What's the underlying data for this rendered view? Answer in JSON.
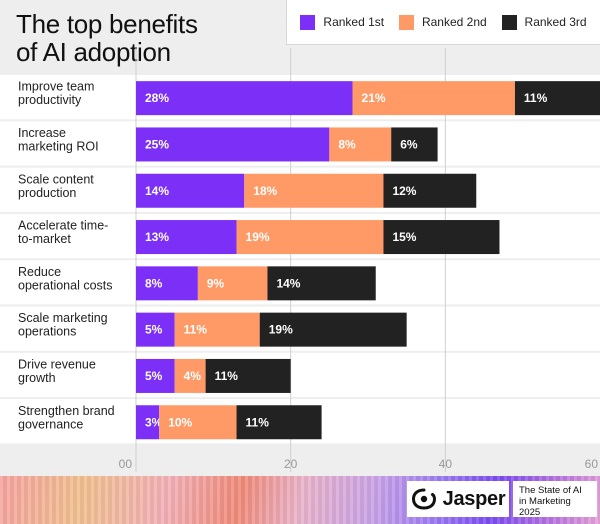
{
  "title_lines": [
    "The top benefits",
    "of AI adoption"
  ],
  "colors": {
    "ranked_1st": "#7b2ff7",
    "ranked_2nd": "#ff9a66",
    "ranked_3rd": "#222222",
    "row_band": "#ffffff",
    "gridline": "#cfcfcf"
  },
  "legend": [
    {
      "label": "Ranked 1st"
    },
    {
      "label": "Ranked 2nd"
    },
    {
      "label": "Ranked 3rd"
    }
  ],
  "footer": {
    "logo_name": "Jasper",
    "logo_icon": "jasper-logo-icon",
    "report_title": "The State of AI in Marketing 2025"
  },
  "chart_data": {
    "type": "bar",
    "orientation": "horizontal",
    "stacked": true,
    "title": "The top benefits of AI adoption",
    "categories": [
      "Improve team productivity",
      "Increase marketing ROI",
      "Scale content production",
      "Accelerate time-to-market",
      "Reduce operational costs",
      "Scale marketing operations",
      "Drive revenue growth",
      "Strengthen brand governance"
    ],
    "category_lines": [
      [
        "Improve team",
        "productivity"
      ],
      [
        "Increase",
        "marketing ROI"
      ],
      [
        "Scale content",
        "production"
      ],
      [
        "Accelerate time-",
        "to-market"
      ],
      [
        "Reduce",
        "operational costs"
      ],
      [
        "Scale marketing",
        "operations"
      ],
      [
        "Drive revenue",
        "growth"
      ],
      [
        "Strengthen brand",
        "governance"
      ]
    ],
    "series": [
      {
        "name": "Ranked 1st",
        "values": [
          28,
          25,
          14,
          13,
          8,
          5,
          5,
          3
        ],
        "labels": [
          "28%",
          "25%",
          "14%",
          "13%",
          "8%",
          "5%",
          "5%",
          "3%"
        ]
      },
      {
        "name": "Ranked 2nd",
        "values": [
          21,
          8,
          18,
          19,
          9,
          11,
          4,
          10
        ],
        "labels": [
          "21%",
          "8%",
          "18%",
          "19%",
          "9%",
          "11%",
          "4%",
          "10%"
        ]
      },
      {
        "name": "Ranked 3rd",
        "values": [
          11,
          6,
          12,
          15,
          14,
          19,
          11,
          11
        ],
        "labels": [
          "11%",
          "6%",
          "12%",
          "15%",
          "14%",
          "19%",
          "11%",
          "11%"
        ]
      }
    ],
    "xlim": [
      0,
      60
    ],
    "xticks": [
      0,
      20,
      40,
      60
    ],
    "xtick_labels": [
      "00",
      "20",
      "40",
      "60"
    ],
    "grid": true,
    "legend_position": "top-right"
  }
}
